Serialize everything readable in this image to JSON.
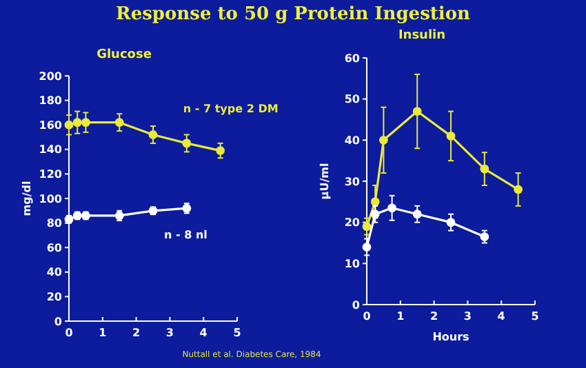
{
  "chart_data": [
    {
      "type": "line",
      "title": "Response to 50 g Protein Ingestion",
      "subtitle": "Glucose",
      "ylabel": "mg/dl",
      "xlim": [
        0,
        5
      ],
      "xticks": [
        0,
        1,
        2,
        3,
        4,
        5
      ],
      "ylim": [
        0,
        200
      ],
      "yticks": [
        0,
        20,
        40,
        60,
        80,
        100,
        120,
        140,
        160,
        180,
        200
      ],
      "marker": "circle",
      "grid": false,
      "series": [
        {
          "name": "n - 7  type 2 DM",
          "color": "#eaea3a",
          "x": [
            0,
            0.25,
            0.5,
            1.5,
            2.5,
            3.5,
            4.5
          ],
          "values": [
            160,
            162,
            162,
            162,
            152,
            145,
            139
          ],
          "errors": [
            8,
            9,
            8,
            7,
            7,
            7,
            6
          ]
        },
        {
          "name": "n - 8 nl",
          "color": "#ffffff",
          "x": [
            0,
            0.25,
            0.5,
            1.5,
            2.5,
            3.5
          ],
          "values": [
            83,
            86,
            86,
            86,
            90,
            92
          ],
          "errors": [
            3,
            3,
            3,
            4,
            3,
            4
          ]
        }
      ]
    },
    {
      "type": "line",
      "subtitle": "Insulin",
      "ylabel": "μU/ml",
      "xlabel": "Hours",
      "xlim": [
        0,
        5
      ],
      "xticks": [
        0,
        1,
        2,
        3,
        4,
        5
      ],
      "ylim": [
        0,
        60
      ],
      "yticks": [
        0,
        10,
        20,
        30,
        40,
        50,
        60
      ],
      "marker": "circle",
      "grid": false,
      "annotations": [
        "Nuttall et al. Diabetes Care, 1984"
      ],
      "series": [
        {
          "color": "#eaea3a",
          "x": [
            0,
            0.25,
            0.5,
            1.5,
            2.5,
            3.5,
            4.5
          ],
          "values": [
            19,
            25,
            40,
            47,
            41,
            33,
            28
          ],
          "errors": [
            2,
            4,
            8,
            9,
            6,
            4,
            4
          ]
        },
        {
          "color": "#ffffff",
          "x": [
            0,
            0.25,
            0.75,
            1.5,
            2.5,
            3.5
          ],
          "values": [
            14,
            22,
            23.5,
            22,
            20,
            16.5
          ],
          "errors": [
            2,
            2,
            3,
            2,
            2,
            1.5
          ]
        }
      ]
    }
  ]
}
